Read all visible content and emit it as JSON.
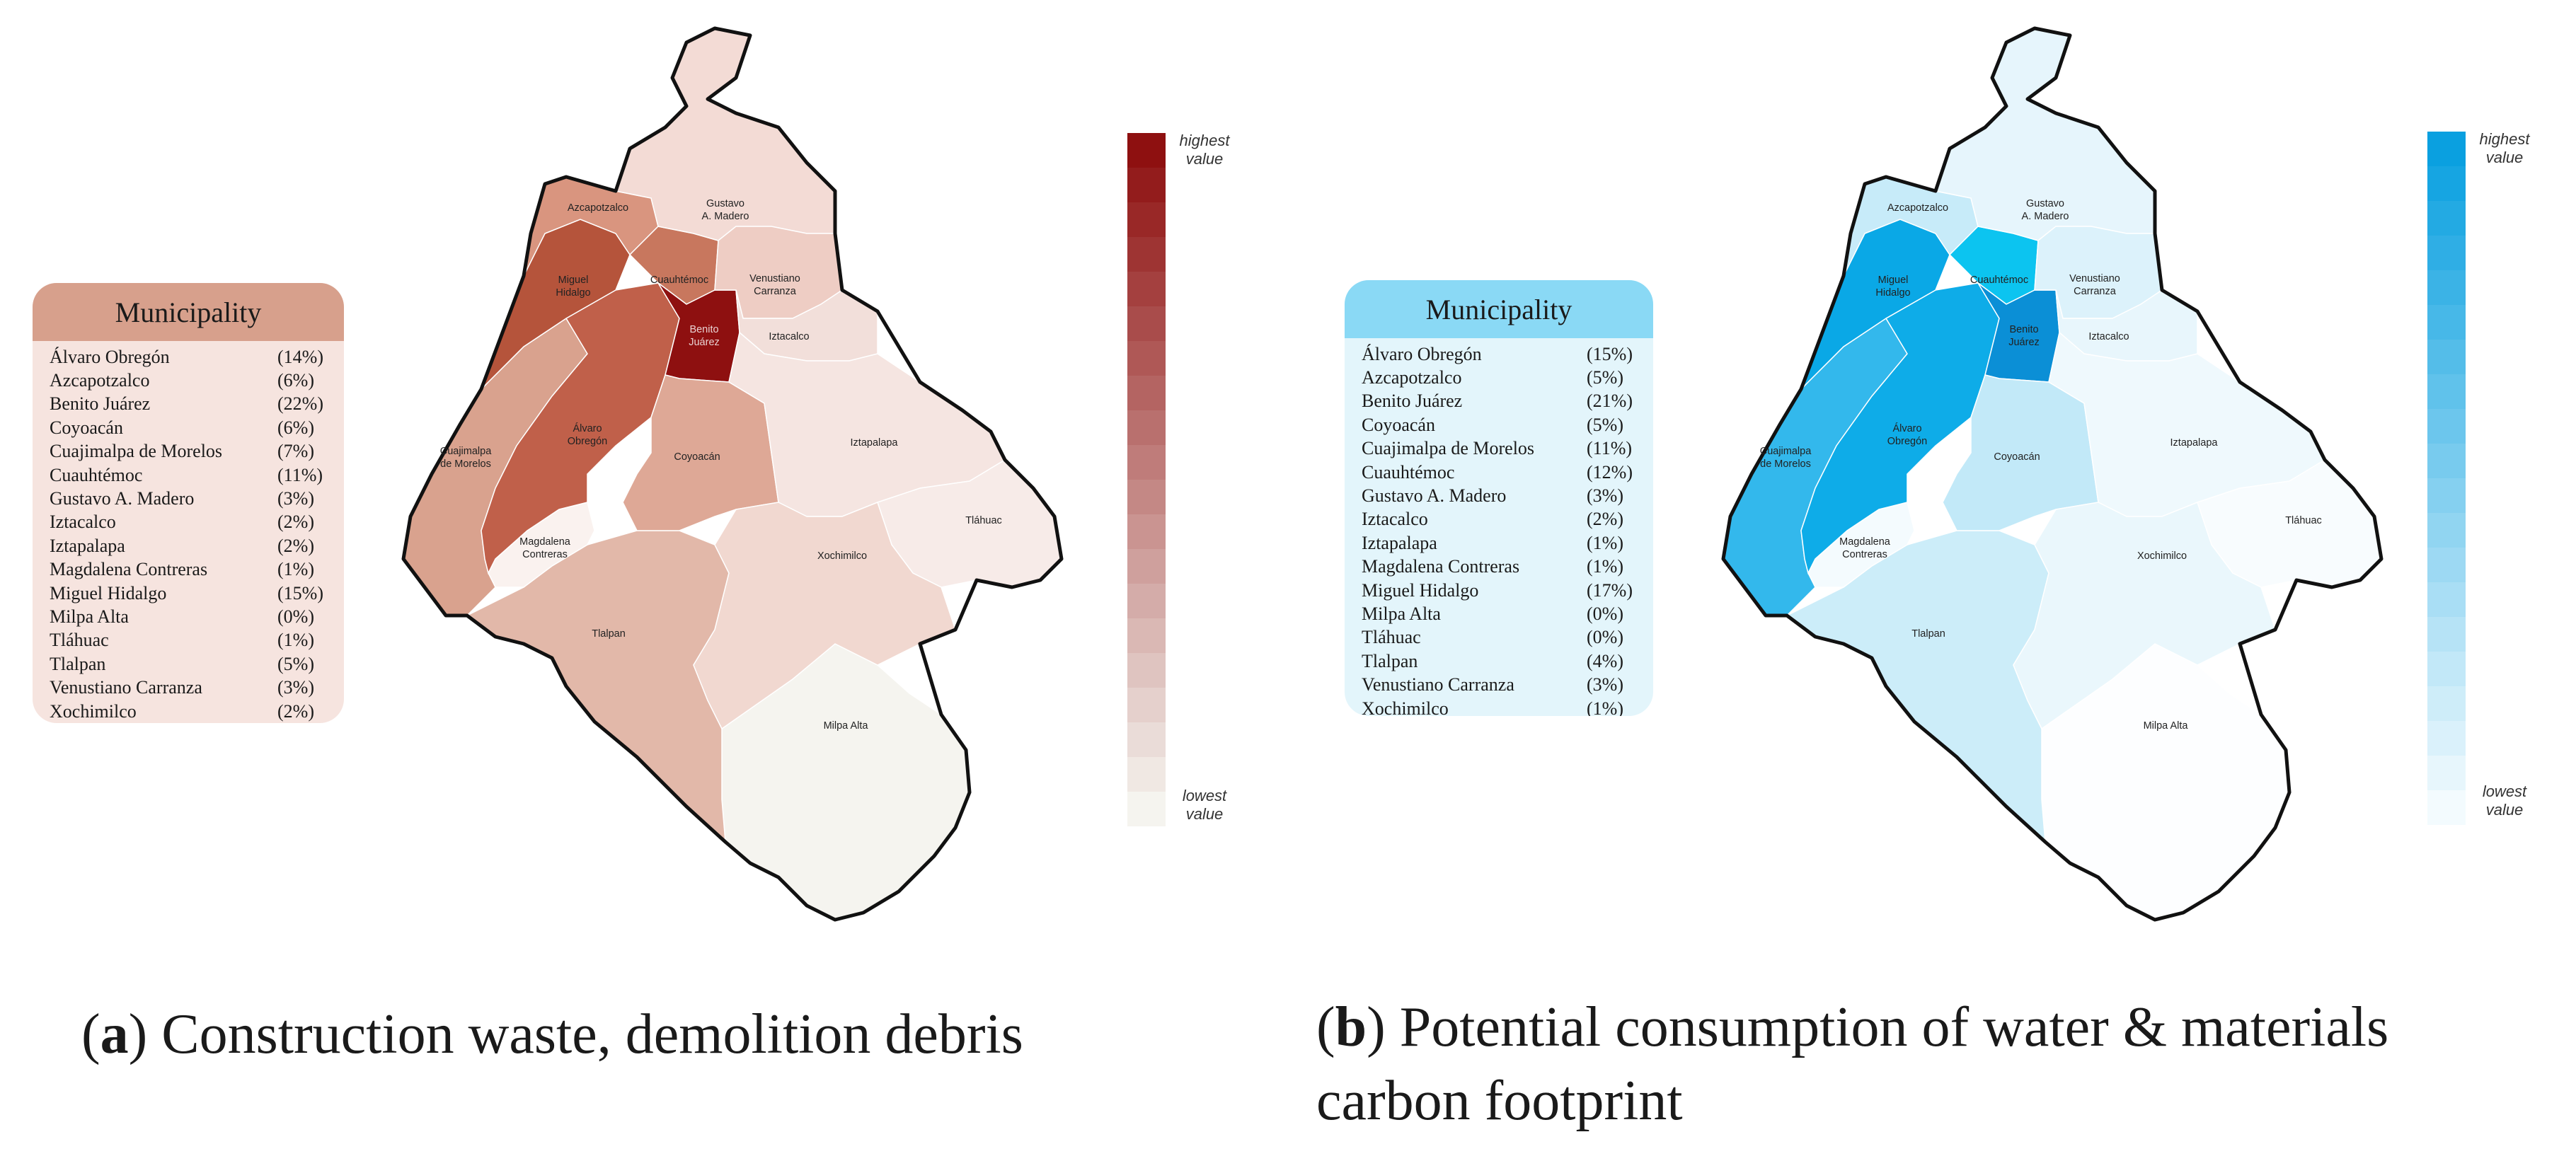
{
  "panels": [
    {
      "id": "a",
      "legend_title": "Municipality",
      "legend_header_color": "#d7a08c",
      "legend_body_color": "#f6e4df",
      "rows": [
        {
          "name": "Álvaro Obregón",
          "pct": "(14%)"
        },
        {
          "name": "Azcapotzalco",
          "pct": "(6%)"
        },
        {
          "name": "Benito Juárez",
          "pct": "(22%)"
        },
        {
          "name": "Coyoacán",
          "pct": "(6%)"
        },
        {
          "name": "Cuajimalpa de Morelos",
          "pct": "(7%)"
        },
        {
          "name": "Cuauhtémoc",
          "pct": "(11%)"
        },
        {
          "name": "Gustavo A. Madero",
          "pct": "(3%)"
        },
        {
          "name": "Iztacalco",
          "pct": "(2%)"
        },
        {
          "name": "Iztapalapa",
          "pct": "(2%)"
        },
        {
          "name": "Magdalena Contreras",
          "pct": "(1%)"
        },
        {
          "name": "Miguel Hidalgo",
          "pct": "(15%)"
        },
        {
          "name": "Milpa Alta",
          "pct": "(0%)"
        },
        {
          "name": "Tláhuac",
          "pct": "(1%)"
        },
        {
          "name": "Tlalpan",
          "pct": "(5%)"
        },
        {
          "name": "Venustiano Carranza",
          "pct": "(3%)"
        },
        {
          "name": "Xochimilco",
          "pct": "(2%)"
        }
      ],
      "fills": {
        "gam": "#f3dbd5",
        "azc": "#d9957f",
        "mh": "#b5543b",
        "cuau": "#c8775e",
        "vc": "#eecdc4",
        "bj": "#8e1010",
        "izc": "#f2dfda",
        "cuaj": "#d9a28e",
        "ao": "#c0604a",
        "coy": "#dea896",
        "izp": "#f5e5e1",
        "tlh": "#f7ebe8",
        "xoc": "#f1d8d0",
        "mc": "#faf2ef",
        "tlp": "#e2b8a9",
        "ma": "#f5f4ef"
      },
      "district_labels": {
        "azc": "Azcapotzalco",
        "gam1": "Gustavo",
        "gam2": "A. Madero",
        "mh1": "Miguel",
        "mh2": "Hidalgo",
        "cuau": "Cuauhtémoc",
        "vc1": "Venustiano",
        "vc2": "Carranza",
        "bj1": "Benito",
        "bj2": "Juárez",
        "izc": "Iztacalco",
        "cuaj1": "Cuajimalpa",
        "cuaj2": "de Morelos",
        "ao1": "Álvaro",
        "ao2": "Obregón",
        "coy": "Coyoacán",
        "izp": "Iztapalapa",
        "tlh": "Tláhuac",
        "xoc": "Xochimilco",
        "mc1": "Magdalena",
        "mc2": "Contreras",
        "tlp": "Tlalpan",
        "ma": "Milpa Alta"
      },
      "scale_top": "#8e1010",
      "scale_bottom": "#f5f4ef",
      "scale_high_1": "highest",
      "scale_high_2": "value",
      "scale_low_1": "lowest",
      "scale_low_2": "value",
      "caption_letter": "a",
      "caption_text": ") Construction waste, demolition debris",
      "caption_text_2": ""
    },
    {
      "id": "b",
      "legend_title": "Municipality",
      "legend_header_color": "#8ad9f5",
      "legend_body_color": "#e3f5fb",
      "rows": [
        {
          "name": "Álvaro Obregón",
          "pct": "(15%)"
        },
        {
          "name": "Azcapotzalco",
          "pct": "(5%)"
        },
        {
          "name": "Benito Juárez",
          "pct": "(21%)"
        },
        {
          "name": "Coyoacán",
          "pct": "(5%)"
        },
        {
          "name": "Cuajimalpa de Morelos",
          "pct": "(11%)"
        },
        {
          "name": "Cuauhtémoc",
          "pct": "(12%)"
        },
        {
          "name": "Gustavo A. Madero",
          "pct": "(3%)"
        },
        {
          "name": "Iztacalco",
          "pct": "(2%)"
        },
        {
          "name": "Iztapalapa",
          "pct": "(1%)"
        },
        {
          "name": "Magdalena Contreras",
          "pct": "(1%)"
        },
        {
          "name": "Miguel Hidalgo",
          "pct": "(17%)"
        },
        {
          "name": "Milpa Alta",
          "pct": "(0%)"
        },
        {
          "name": "Tláhuac",
          "pct": "(0%)"
        },
        {
          "name": "Tlalpan",
          "pct": "(4%)"
        },
        {
          "name": "Venustiano Carranza",
          "pct": "(3%)"
        },
        {
          "name": "Xochimilco",
          "pct": "(1%)"
        }
      ],
      "fills": {
        "gam": "#e6f5fc",
        "azc": "#c7ebf9",
        "mh": "#0aa8e6",
        "cuau": "#0cc4f0",
        "vc": "#dcf2fb",
        "bj": "#0b8fd6",
        "izc": "#e8f6fc",
        "cuaj": "#33b8ec",
        "ao": "#0eace8",
        "coy": "#c2e9f8",
        "izp": "#eff9fd",
        "tlh": "#f8fcfe",
        "xoc": "#eaf7fc",
        "mc": "#f4fbfe",
        "tlp": "#ccedf9",
        "ma": "#fdfeff"
      },
      "district_labels": {
        "azc": "Azcapotzalco",
        "gam1": "Gustavo",
        "gam2": "A. Madero",
        "mh1": "Miguel",
        "mh2": "Hidalgo",
        "cuau": "Cuauhtémoc",
        "vc1": "Venustiano",
        "vc2": "Carranza",
        "bj1": "Benito",
        "bj2": "Juárez",
        "izc": "Iztacalco",
        "cuaj1": "Cuajimalpa",
        "cuaj2": "de Morelos",
        "ao1": "Álvaro",
        "ao2": "Obregón",
        "coy": "Coyoacán",
        "izp": "Iztapalapa",
        "tlh": "Tláhuac",
        "xoc": "Xochimilco",
        "mc1": "Magdalena",
        "mc2": "Contreras",
        "tlp": "Tlalpan",
        "ma": "Milpa Alta"
      },
      "scale_top": "#0aa0e0",
      "scale_bottom": "#f3fbfe",
      "scale_high_1": "highest",
      "scale_high_2": "value",
      "scale_low_1": "lowest",
      "scale_low_2": "value",
      "caption_letter": "b",
      "caption_text": ") Potential consumption of water & materials",
      "caption_text_2": "carbon footprint"
    }
  ]
}
